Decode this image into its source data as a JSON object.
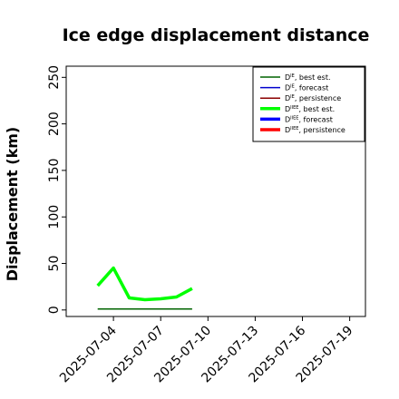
{
  "chart_data": {
    "type": "line",
    "title": "Ice edge displacement distance",
    "ylabel": "Displacement (km)",
    "xlabel": "",
    "xlim": [
      "2025-07-01",
      "2025-07-20"
    ],
    "ylim": [
      -7,
      262
    ],
    "yticks": [
      0,
      50,
      100,
      150,
      200,
      250
    ],
    "xticks": [
      {
        "label": "2025-07-04",
        "date": "2025-07-04",
        "color": "#000000"
      },
      {
        "label": "2025-07-07",
        "date": "2025-07-07",
        "color": "#000000"
      },
      {
        "label": "2025-07-10",
        "date": "2025-07-10",
        "color": "#228b22"
      },
      {
        "label": "2025-07-13",
        "date": "2025-07-13",
        "color": "#000000"
      },
      {
        "label": "2025-07-16",
        "date": "2025-07-16",
        "color": "#000000"
      },
      {
        "label": "2025-07-19",
        "date": "2025-07-19",
        "color": "#000000"
      }
    ],
    "legend_position": "top-right",
    "series": [
      {
        "name": "D^IE, best est.",
        "sup": "IE",
        "label_rest": ", best est.",
        "color": "#006400",
        "width": 1.5,
        "x": [
          "2025-07-03",
          "2025-07-09"
        ],
        "y": [
          1,
          1
        ]
      },
      {
        "name": "D^IE, forecast",
        "sup": "IE",
        "label_rest": ", forecast",
        "color": "#0000cd",
        "width": 1.5,
        "x": [],
        "y": []
      },
      {
        "name": "D^IE, persistence",
        "sup": "IE",
        "label_rest": ", persistence",
        "color": "#8b0000",
        "width": 1.5,
        "x": [],
        "y": []
      },
      {
        "name": "D^IIEE, best est.",
        "sup": "IIEE",
        "label_rest": ", best est.",
        "color": "#00ff00",
        "width": 3.5,
        "x": [
          "2025-07-03",
          "2025-07-04",
          "2025-07-05",
          "2025-07-06",
          "2025-07-07",
          "2025-07-08",
          "2025-07-09"
        ],
        "y": [
          26,
          45,
          13,
          11,
          12,
          14,
          23
        ]
      },
      {
        "name": "D^IIEE, forecast",
        "sup": "IIEE",
        "label_rest": ", forecast",
        "color": "#0000ff",
        "width": 3.5,
        "x": [],
        "y": []
      },
      {
        "name": "D^IIEE, persistence",
        "sup": "IIEE",
        "label_rest": ", persistence",
        "color": "#ff0000",
        "width": 3.5,
        "x": [],
        "y": []
      }
    ]
  }
}
